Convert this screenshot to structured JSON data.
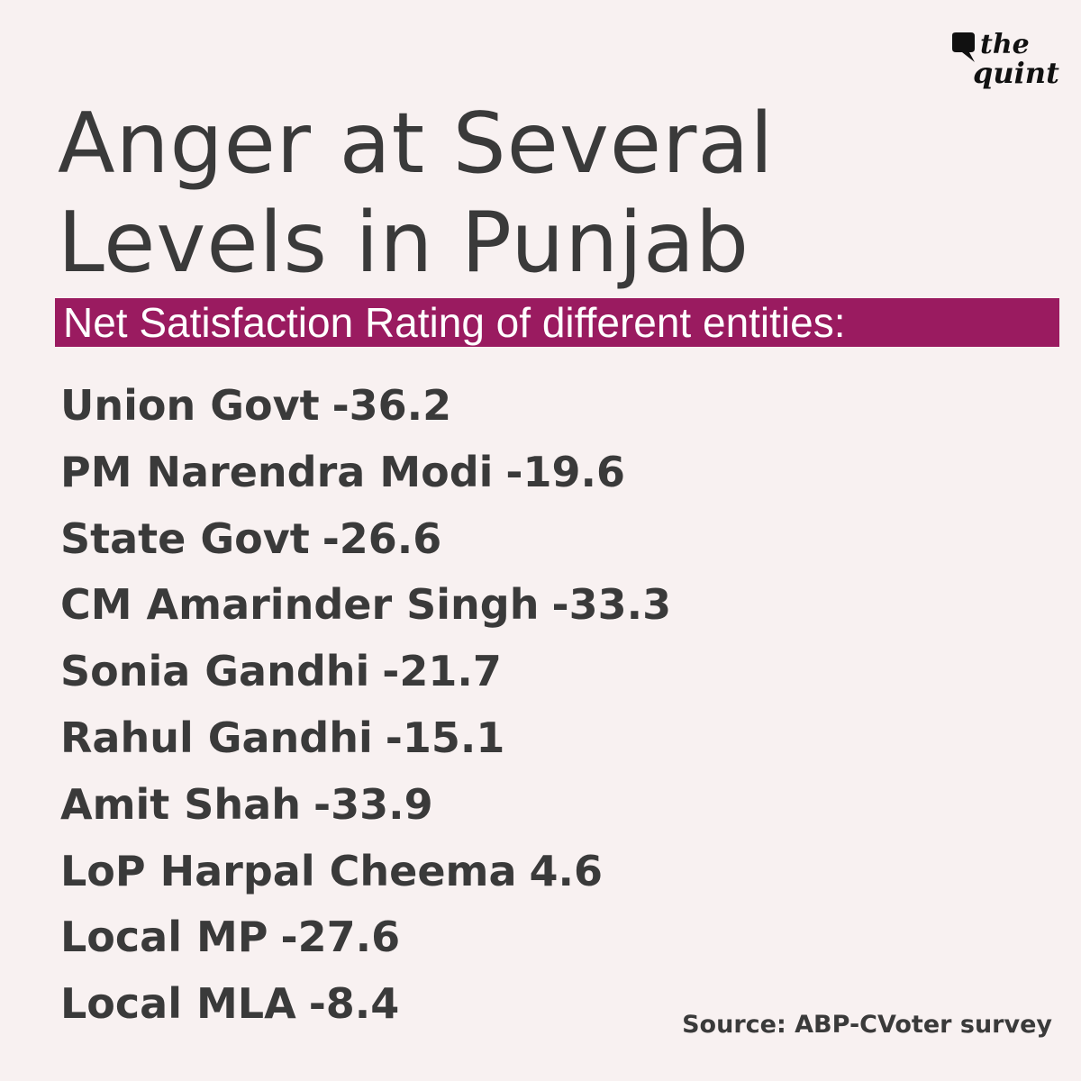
{
  "logo": {
    "line1": "the",
    "line2": "quint"
  },
  "title": {
    "line1": "Anger at Several",
    "line2": "Levels in Punjab"
  },
  "subtitle": "Net Satisfaction Rating of different entities:",
  "ratings": [
    {
      "label": "Union Govt",
      "value": "-36.2"
    },
    {
      "label": "PM Narendra Modi",
      "value": "-19.6"
    },
    {
      "label": "State Govt",
      "value": "-26.6"
    },
    {
      "label": "CM Amarinder Singh",
      "value": "-33.3"
    },
    {
      "label": "Sonia Gandhi",
      "value": "-21.7"
    },
    {
      "label": "Rahul Gandhi",
      "value": "-15.1"
    },
    {
      "label": "Amit Shah",
      "value": "-33.9"
    },
    {
      "label": "LoP Harpal Cheema",
      "value": "4.6"
    },
    {
      "label": "Local MP",
      "value": "-27.6"
    },
    {
      "label": "Local MLA",
      "value": "-8.4"
    }
  ],
  "source": "Source: ABP-CVoter survey",
  "colors": {
    "background": "#f8f1f1",
    "accent": "#9a1b60",
    "text": "#3a3a3a"
  }
}
